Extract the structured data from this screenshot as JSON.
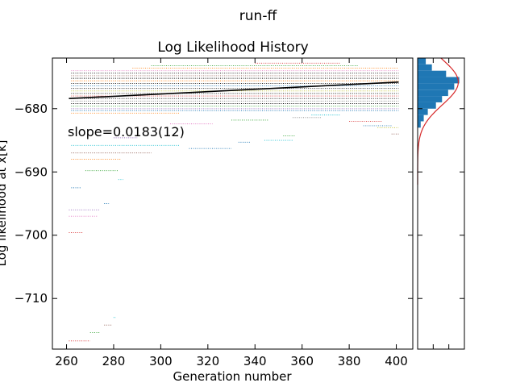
{
  "figure": {
    "suptitle": "run-ff"
  },
  "chart_data": [
    {
      "type": "scatter",
      "title": "Log Likelihood History",
      "xlabel": "Generation number",
      "ylabel": "Log likelihood at x[k]",
      "xlim": [
        254,
        407
      ],
      "ylim": [
        -718,
        -672
      ],
      "xticks": [
        260,
        280,
        300,
        320,
        340,
        360,
        380,
        400
      ],
      "yticks": [
        -680,
        -690,
        -700,
        -710
      ],
      "annotation": "slope=0.0183(12)",
      "fit_line": {
        "x": [
          261,
          401
        ],
        "y": [
          -678.4,
          -675.8
        ]
      },
      "trace_colors": [
        "#1f77b4",
        "#ff7f0e",
        "#2ca02c",
        "#d62728",
        "#9467bd",
        "#8c564b",
        "#e377c2",
        "#7f7f7f",
        "#bcbd22",
        "#17becf",
        "#000000"
      ],
      "trace_segments": [
        {
          "y": -716.7,
          "x": [
            261,
            270
          ],
          "color": "#d62728"
        },
        {
          "y": -715.4,
          "x": [
            270,
            274
          ],
          "color": "#2ca02c"
        },
        {
          "y": -714.2,
          "x": [
            276,
            279
          ],
          "color": "#8c564b"
        },
        {
          "y": -713.0,
          "x": [
            280,
            281
          ],
          "color": "#17becf"
        },
        {
          "y": -699.6,
          "x": [
            261,
            267
          ],
          "color": "#d62728"
        },
        {
          "y": -697.0,
          "x": [
            261,
            273
          ],
          "color": "#e377c2"
        },
        {
          "y": -696.0,
          "x": [
            261,
            274
          ],
          "color": "#9467bd"
        },
        {
          "y": -695.0,
          "x": [
            276,
            278
          ],
          "color": "#1f77b4"
        },
        {
          "y": -692.5,
          "x": [
            262,
            266
          ],
          "color": "#1f77b4"
        },
        {
          "y": -691.2,
          "x": [
            282,
            284
          ],
          "color": "#17becf"
        },
        {
          "y": -689.8,
          "x": [
            268,
            282
          ],
          "color": "#2ca02c"
        },
        {
          "y": -688.0,
          "x": [
            262,
            283
          ],
          "color": "#ff7f0e"
        },
        {
          "y": -687.0,
          "x": [
            262,
            296
          ],
          "color": "#8c564b"
        },
        {
          "y": -686.3,
          "x": [
            312,
            330
          ],
          "color": "#1f77b4"
        },
        {
          "y": -685.8,
          "x": [
            262,
            308
          ],
          "color": "#17becf"
        },
        {
          "y": -685.3,
          "x": [
            333,
            338
          ],
          "color": "#1f77b4"
        },
        {
          "y": -685.0,
          "x": [
            344,
            356
          ],
          "color": "#17becf"
        },
        {
          "y": -684.6,
          "x": [
            280,
            290
          ],
          "color": "#9467bd"
        },
        {
          "y": -684.3,
          "x": [
            352,
            357
          ],
          "color": "#2ca02c"
        },
        {
          "y": -684.0,
          "x": [
            398,
            401
          ],
          "color": "#8c564b"
        },
        {
          "y": -683.0,
          "x": [
            392,
            401
          ],
          "color": "#bcbd22"
        },
        {
          "y": -682.7,
          "x": [
            386,
            398
          ],
          "color": "#1f77b4"
        },
        {
          "y": -682.4,
          "x": [
            304,
            322
          ],
          "color": "#e377c2"
        },
        {
          "y": -682.0,
          "x": [
            380,
            394
          ],
          "color": "#d62728"
        },
        {
          "y": -681.8,
          "x": [
            330,
            346
          ],
          "color": "#2ca02c"
        },
        {
          "y": -681.4,
          "x": [
            356,
            368
          ],
          "color": "#7f7f7f"
        },
        {
          "y": -681.0,
          "x": [
            364,
            376
          ],
          "color": "#17becf"
        },
        {
          "y": -680.7,
          "x": [
            262,
            308
          ],
          "color": "#ff7f0e"
        },
        {
          "y": -680.3,
          "x": [
            262,
            401
          ],
          "color": "#1f77b4"
        },
        {
          "y": -680.0,
          "x": [
            262,
            401
          ],
          "color": "#9467bd"
        },
        {
          "y": -679.6,
          "x": [
            262,
            401
          ],
          "color": "#2ca02c"
        },
        {
          "y": -679.2,
          "x": [
            262,
            401
          ],
          "color": "#000000"
        },
        {
          "y": -678.8,
          "x": [
            262,
            401
          ],
          "color": "#7f7f7f"
        },
        {
          "y": -678.4,
          "x": [
            262,
            401
          ],
          "color": "#000000"
        },
        {
          "y": -678.0,
          "x": [
            262,
            401
          ],
          "color": "#d62728"
        },
        {
          "y": -677.6,
          "x": [
            262,
            401
          ],
          "color": "#000000"
        },
        {
          "y": -677.2,
          "x": [
            262,
            401
          ],
          "color": "#bcbd22"
        },
        {
          "y": -676.8,
          "x": [
            262,
            401
          ],
          "color": "#000000"
        },
        {
          "y": -676.4,
          "x": [
            262,
            401
          ],
          "color": "#1f77b4"
        },
        {
          "y": -676.0,
          "x": [
            262,
            401
          ],
          "color": "#000000"
        },
        {
          "y": -675.6,
          "x": [
            262,
            401
          ],
          "color": "#ff7f0e"
        },
        {
          "y": -675.2,
          "x": [
            262,
            401
          ],
          "color": "#000000"
        },
        {
          "y": -674.8,
          "x": [
            262,
            401
          ],
          "color": "#8c564b"
        },
        {
          "y": -674.4,
          "x": [
            262,
            401
          ],
          "color": "#000000"
        },
        {
          "y": -674.0,
          "x": [
            262,
            401
          ],
          "color": "#e377c2"
        },
        {
          "y": -673.6,
          "x": [
            288,
            401
          ],
          "color": "#ff7f0e"
        },
        {
          "y": -673.2,
          "x": [
            296,
            384
          ],
          "color": "#2ca02c"
        },
        {
          "y": -672.8,
          "x": [
            340,
            376
          ],
          "color": "#d62728"
        }
      ]
    },
    {
      "type": "histogram",
      "orientation": "horizontal",
      "ylim": [
        -718,
        -672
      ],
      "xticks": 2,
      "bar_color": "#1f77b4",
      "curve_color": "#d62728",
      "bins": [
        {
          "y0": -673.0,
          "y1": -672.0,
          "count": 0.8
        },
        {
          "y0": -674.0,
          "y1": -673.0,
          "count": 1.4
        },
        {
          "y0": -675.0,
          "y1": -674.0,
          "count": 2.8
        },
        {
          "y0": -676.0,
          "y1": -675.0,
          "count": 4.1
        },
        {
          "y0": -677.0,
          "y1": -676.0,
          "count": 3.6
        },
        {
          "y0": -678.0,
          "y1": -677.0,
          "count": 3.0
        },
        {
          "y0": -679.0,
          "y1": -678.0,
          "count": 2.4
        },
        {
          "y0": -680.0,
          "y1": -679.0,
          "count": 1.8
        },
        {
          "y0": -681.0,
          "y1": -680.0,
          "count": 1.0
        },
        {
          "y0": -682.0,
          "y1": -681.0,
          "count": 0.6
        },
        {
          "y0": -683.0,
          "y1": -682.0,
          "count": 0.3
        }
      ],
      "fit_curve": {
        "mean": -675.8,
        "sd": 3.6,
        "peak": 4.0,
        "xmax": 4.6
      }
    }
  ]
}
